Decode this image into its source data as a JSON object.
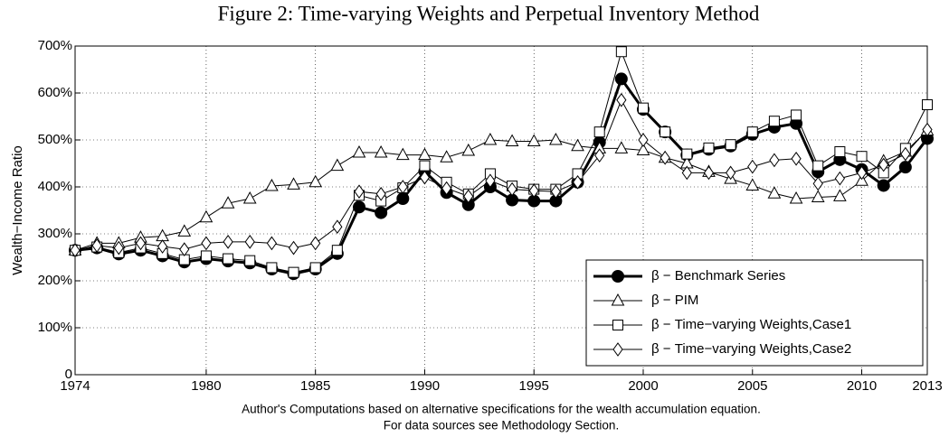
{
  "chart_data": {
    "type": "line",
    "title": "Figure 2: Time-varying Weights and Perpetual Inventory Method",
    "ylabel": "Wealth−Income Ratio",
    "caption": [
      "Author's Computations based on alternative specifications for the wealth accumulation equation.",
      "For data sources see Methodology Section."
    ],
    "x": [
      1974,
      1975,
      1976,
      1977,
      1978,
      1979,
      1980,
      1981,
      1982,
      1983,
      1984,
      1985,
      1986,
      1987,
      1988,
      1989,
      1990,
      1991,
      1992,
      1993,
      1994,
      1995,
      1996,
      1997,
      1998,
      1999,
      2000,
      2001,
      2002,
      2003,
      2004,
      2005,
      2006,
      2007,
      2008,
      2009,
      2010,
      2011,
      2012,
      2013
    ],
    "xlim": [
      1974,
      2013
    ],
    "xticks": [
      1974,
      1980,
      1985,
      1990,
      1995,
      2000,
      2005,
      2010,
      2013
    ],
    "ylim": [
      0,
      700
    ],
    "yticks": [
      0,
      {
        "value": 100,
        "label": "100%"
      },
      {
        "value": 200,
        "label": "200%"
      },
      {
        "value": 300,
        "label": "300%"
      },
      {
        "value": 400,
        "label": "400%"
      },
      {
        "value": 500,
        "label": "500%"
      },
      {
        "value": 600,
        "label": "600%"
      },
      {
        "value": 700,
        "label": "700%"
      }
    ],
    "grid": true,
    "legend": "lower right",
    "series": [
      {
        "name": "β − Benchmark Series",
        "color": "#000000",
        "marker": "circle",
        "values": [
          265,
          270,
          257,
          265,
          253,
          240,
          247,
          242,
          238,
          225,
          215,
          225,
          258,
          357,
          345,
          375,
          433,
          388,
          362,
          400,
          372,
          370,
          370,
          410,
          495,
          630,
          565,
          517,
          468,
          480,
          487,
          512,
          527,
          535,
          432,
          458,
          437,
          403,
          442,
          503
        ]
      },
      {
        "name": "β − PIM",
        "color": "#000000",
        "marker": "triangle",
        "values": [
          265,
          280,
          280,
          292,
          295,
          305,
          335,
          365,
          375,
          402,
          405,
          410,
          445,
          473,
          473,
          468,
          468,
          463,
          477,
          500,
          497,
          497,
          500,
          487,
          482,
          482,
          478,
          462,
          450,
          432,
          417,
          403,
          386,
          375,
          378,
          380,
          413,
          455,
          475,
          520
        ]
      },
      {
        "name": "β − Time−varying Weights,Case1",
        "color": "#000000",
        "marker": "square",
        "values": [
          265,
          272,
          260,
          270,
          258,
          245,
          253,
          247,
          243,
          228,
          218,
          228,
          265,
          382,
          370,
          398,
          445,
          410,
          385,
          428,
          402,
          395,
          395,
          428,
          517,
          688,
          568,
          517,
          470,
          483,
          490,
          517,
          540,
          553,
          445,
          475,
          465,
          430,
          482,
          575
        ]
      },
      {
        "name": "β − Time−varying Weights,Case2",
        "color": "#000000",
        "marker": "diamond",
        "values": [
          265,
          275,
          270,
          280,
          273,
          267,
          280,
          283,
          283,
          280,
          270,
          280,
          315,
          390,
          385,
          400,
          420,
          397,
          380,
          413,
          395,
          392,
          390,
          410,
          467,
          585,
          500,
          462,
          430,
          430,
          430,
          443,
          457,
          460,
          407,
          418,
          430,
          447,
          470,
          522
        ]
      }
    ]
  }
}
